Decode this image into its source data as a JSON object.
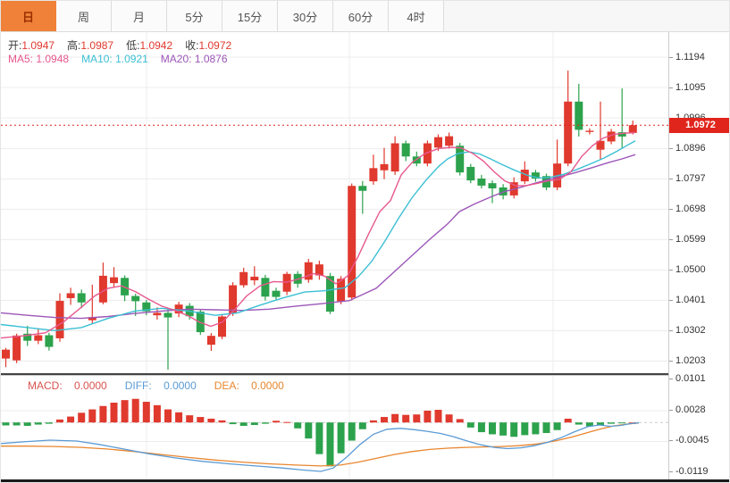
{
  "tabs": [
    {
      "label": "日",
      "active": true
    },
    {
      "label": "周",
      "active": false
    },
    {
      "label": "月",
      "active": false
    },
    {
      "label": "5分",
      "active": false
    },
    {
      "label": "15分",
      "active": false
    },
    {
      "label": "30分",
      "active": false
    },
    {
      "label": "60分",
      "active": false
    },
    {
      "label": "4时",
      "active": false
    }
  ],
  "colors": {
    "up": "#e0392e",
    "down": "#2ca24c",
    "ma5": "#e7588e",
    "ma10": "#3bbfd4",
    "ma20": "#9c56b8",
    "diff": "#5b9bd5",
    "dea": "#e8862e",
    "price_line": "#e0251c",
    "grid": "#ececec",
    "tab_active_bg": "#ef8139"
  },
  "chart_data": {
    "type": "candlestick+macd",
    "main": {
      "readout": {
        "open_label": "开:",
        "open": "1.0947",
        "high_label": "高:",
        "high": "1.0987",
        "low_label": "低:",
        "low": "1.0942",
        "close_label": "收:",
        "close": "1.0972"
      },
      "ma_readout": {
        "ma5_label": "MA5:",
        "ma5": "1.0948",
        "ma10_label": "MA10:",
        "ma10": "1.0921",
        "ma20_label": "MA20:",
        "ma20": "1.0876"
      },
      "y_axis_labels": [
        "1.1194",
        "1.1095",
        "1.0996",
        "1.0896",
        "1.0797",
        "1.0698",
        "1.0599",
        "1.0500",
        "1.0401",
        "1.0302",
        "1.0203"
      ],
      "current_price": "1.0972",
      "candles": [
        [
          1.0211,
          1.0246,
          1.0183,
          1.024
        ],
        [
          1.0205,
          1.0292,
          1.0196,
          1.0286
        ],
        [
          1.0292,
          1.0318,
          1.0252,
          1.0269
        ],
        [
          1.0269,
          1.031,
          1.0258,
          1.0287
        ],
        [
          1.0287,
          1.0295,
          1.0237,
          1.0249
        ],
        [
          1.0277,
          1.0424,
          1.0266,
          1.0399
        ],
        [
          1.0408,
          1.0442,
          1.0386,
          1.0424
        ],
        [
          1.0424,
          1.0436,
          1.0375,
          1.0394
        ],
        [
          1.0336,
          1.0452,
          1.0326,
          1.0346
        ],
        [
          1.0394,
          1.0524,
          1.0388,
          1.0481
        ],
        [
          1.0457,
          1.0509,
          1.0444,
          1.0476
        ],
        [
          1.0474,
          1.0482,
          1.0398,
          1.0417
        ],
        [
          1.0415,
          1.0422,
          1.035,
          1.0398
        ],
        [
          1.0394,
          1.0402,
          1.0352,
          1.0365
        ],
        [
          1.0352,
          1.0378,
          1.0338,
          1.036
        ],
        [
          1.036,
          1.0374,
          1.0175,
          1.0345
        ],
        [
          1.0358,
          1.0396,
          1.0346,
          1.0387
        ],
        [
          1.0383,
          1.0392,
          1.0338,
          1.0349
        ],
        [
          1.0364,
          1.0372,
          1.0288,
          1.0297
        ],
        [
          1.0256,
          1.0294,
          1.0236,
          1.0285
        ],
        [
          1.0282,
          1.0354,
          1.0274,
          1.0348
        ],
        [
          1.0358,
          1.046,
          1.035,
          1.045
        ],
        [
          1.045,
          1.0507,
          1.0442,
          1.0493
        ],
        [
          1.0466,
          1.0512,
          1.045,
          1.0478
        ],
        [
          1.0474,
          1.0484,
          1.04,
          1.0413
        ],
        [
          1.0432,
          1.0442,
          1.0403,
          1.0412
        ],
        [
          1.0429,
          1.0494,
          1.0418,
          1.0487
        ],
        [
          1.0487,
          1.0496,
          1.0442,
          1.0455
        ],
        [
          1.0468,
          1.0536,
          1.0458,
          1.0525
        ],
        [
          1.0482,
          1.053,
          1.0468,
          1.0518
        ],
        [
          1.048,
          1.049,
          1.0356,
          1.0364
        ],
        [
          1.0398,
          1.048,
          1.0388,
          1.0471
        ],
        [
          1.041,
          1.0782,
          1.04,
          1.0774
        ],
        [
          1.0774,
          1.079,
          1.0683,
          1.0758
        ],
        [
          1.0789,
          1.0876,
          1.0778,
          1.0832
        ],
        [
          1.0825,
          1.0898,
          1.0796,
          1.0845
        ],
        [
          1.0821,
          1.0936,
          1.081,
          1.0913
        ],
        [
          1.0913,
          1.0922,
          1.0855,
          1.087
        ],
        [
          1.087,
          1.0886,
          1.0838,
          1.0847
        ],
        [
          1.0847,
          1.0922,
          1.0838,
          1.0913
        ],
        [
          1.0899,
          1.0942,
          1.0888,
          1.0933
        ],
        [
          1.0905,
          1.0948,
          1.0896,
          1.0936
        ],
        [
          1.0905,
          1.0914,
          1.0808,
          1.0818
        ],
        [
          1.0836,
          1.0846,
          1.0783,
          1.0792
        ],
        [
          1.0798,
          1.081,
          1.0766,
          1.0775
        ],
        [
          1.0783,
          1.0792,
          1.0718,
          1.0766
        ],
        [
          1.0769,
          1.078,
          1.073,
          1.0743
        ],
        [
          1.0743,
          1.0802,
          1.0733,
          1.0786
        ],
        [
          1.0789,
          1.0854,
          1.078,
          1.0827
        ],
        [
          1.0818,
          1.0826,
          1.0788,
          1.0798
        ],
        [
          1.0806,
          1.0814,
          1.076,
          1.0769
        ],
        [
          1.0769,
          1.0925,
          1.076,
          1.0847
        ],
        [
          1.0847,
          1.115,
          1.0838,
          1.1049
        ],
        [
          1.1049,
          1.1107,
          1.0935,
          1.0957
        ],
        [
          1.095,
          1.0962,
          1.0942,
          1.0954
        ],
        [
          1.0892,
          1.1049,
          1.0861,
          1.0921
        ],
        [
          1.0919,
          1.096,
          1.091,
          1.0951
        ],
        [
          1.0949,
          1.1092,
          1.0898,
          1.0935
        ],
        [
          1.0947,
          1.0987,
          1.0942,
          1.0972
        ]
      ],
      "ma5_points": [
        [
          0,
          1.0278
        ],
        [
          25,
          1.0285
        ],
        [
          50,
          1.0295
        ],
        [
          70,
          1.033
        ],
        [
          90,
          1.0378
        ],
        [
          105,
          1.0415
        ],
        [
          120,
          1.044
        ],
        [
          135,
          1.0448
        ],
        [
          150,
          1.043
        ],
        [
          165,
          1.0405
        ],
        [
          180,
          1.0382
        ],
        [
          195,
          1.0368
        ],
        [
          210,
          1.035
        ],
        [
          222,
          1.033
        ],
        [
          235,
          1.0316
        ],
        [
          248,
          1.033
        ],
        [
          262,
          1.0372
        ],
        [
          275,
          1.0415
        ],
        [
          290,
          1.0448
        ],
        [
          305,
          1.0462
        ],
        [
          320,
          1.046
        ],
        [
          335,
          1.0472
        ],
        [
          350,
          1.0488
        ],
        [
          362,
          1.048
        ],
        [
          375,
          1.0455
        ],
        [
          388,
          1.048
        ],
        [
          400,
          1.0545
        ],
        [
          412,
          1.062
        ],
        [
          424,
          1.069
        ],
        [
          436,
          1.0726
        ],
        [
          448,
          1.081
        ],
        [
          460,
          1.085
        ],
        [
          475,
          1.088
        ],
        [
          490,
          1.0896
        ],
        [
          505,
          1.09
        ],
        [
          515,
          1.0898
        ],
        [
          528,
          1.088
        ],
        [
          540,
          1.0855
        ],
        [
          552,
          1.082
        ],
        [
          564,
          1.079
        ],
        [
          576,
          1.0775
        ],
        [
          588,
          1.0775
        ],
        [
          600,
          1.0782
        ],
        [
          612,
          1.079
        ],
        [
          625,
          1.0795
        ],
        [
          638,
          1.082
        ],
        [
          650,
          1.087
        ],
        [
          662,
          1.0905
        ],
        [
          674,
          1.093
        ],
        [
          686,
          1.0942
        ],
        [
          698,
          1.0946
        ],
        [
          710,
          1.0948
        ]
      ],
      "ma10_points": [
        [
          0,
          1.0322
        ],
        [
          30,
          1.0312
        ],
        [
          60,
          1.0302
        ],
        [
          90,
          1.0312
        ],
        [
          120,
          1.0342
        ],
        [
          150,
          1.0366
        ],
        [
          180,
          1.0375
        ],
        [
          210,
          1.0366
        ],
        [
          240,
          1.0352
        ],
        [
          265,
          1.036
        ],
        [
          290,
          1.0385
        ],
        [
          315,
          1.0408
        ],
        [
          340,
          1.0428
        ],
        [
          362,
          1.0432
        ],
        [
          385,
          1.0442
        ],
        [
          400,
          1.0478
        ],
        [
          415,
          1.0528
        ],
        [
          430,
          1.0595
        ],
        [
          445,
          1.0668
        ],
        [
          460,
          1.0735
        ],
        [
          475,
          1.079
        ],
        [
          490,
          1.0838
        ],
        [
          500,
          1.0862
        ],
        [
          512,
          1.088
        ],
        [
          524,
          1.0885
        ],
        [
          536,
          1.0878
        ],
        [
          548,
          1.0862
        ],
        [
          560,
          1.0845
        ],
        [
          575,
          1.0825
        ],
        [
          590,
          1.0808
        ],
        [
          602,
          1.08
        ],
        [
          615,
          1.0802
        ],
        [
          630,
          1.0812
        ],
        [
          645,
          1.0828
        ],
        [
          660,
          1.0846
        ],
        [
          675,
          1.0865
        ],
        [
          690,
          1.0888
        ],
        [
          700,
          1.0905
        ],
        [
          710,
          1.0921
        ]
      ],
      "ma20_points": [
        [
          0,
          1.036
        ],
        [
          30,
          1.0352
        ],
        [
          60,
          1.0345
        ],
        [
          90,
          1.0342
        ],
        [
          120,
          1.0348
        ],
        [
          150,
          1.0358
        ],
        [
          180,
          1.0366
        ],
        [
          210,
          1.0372
        ],
        [
          240,
          1.037
        ],
        [
          270,
          1.0368
        ],
        [
          300,
          1.0372
        ],
        [
          330,
          1.0382
        ],
        [
          360,
          1.039
        ],
        [
          390,
          1.04
        ],
        [
          420,
          1.044
        ],
        [
          450,
          1.052
        ],
        [
          480,
          1.06
        ],
        [
          500,
          1.065
        ],
        [
          513,
          1.069
        ],
        [
          530,
          1.0715
        ],
        [
          550,
          1.074
        ],
        [
          563,
          1.0755
        ],
        [
          580,
          1.0768
        ],
        [
          600,
          1.0785
        ],
        [
          620,
          1.08
        ],
        [
          640,
          1.0815
        ],
        [
          660,
          1.0832
        ],
        [
          680,
          1.085
        ],
        [
          695,
          1.0862
        ],
        [
          710,
          1.0876
        ]
      ]
    },
    "macd": {
      "readout": {
        "macd_label": "MACD:",
        "macd": "0.0000",
        "diff_label": "DIFF:",
        "diff": "0.0000",
        "dea_label": "DEA:",
        "dea": "0.0000"
      },
      "y_axis_labels": [
        "0.0101",
        "0.0028",
        "-0.0045",
        "-0.0119"
      ],
      "histogram": [
        -0.0007,
        -0.0007,
        -0.0008,
        -0.0005,
        -0.0003,
        0.0007,
        0.0014,
        0.0023,
        0.0031,
        0.0039,
        0.0047,
        0.0053,
        0.0056,
        0.0049,
        0.0041,
        0.0031,
        0.0024,
        0.0017,
        0.0013,
        0.0009,
        0.0005,
        -0.0004,
        -0.0008,
        -0.0006,
        -0.0003,
        0.0004,
        0.0001,
        -0.0014,
        -0.0038,
        -0.0075,
        -0.0104,
        -0.0073,
        -0.0043,
        -0.0016,
        0.0005,
        0.0013,
        0.002,
        0.0018,
        0.0019,
        0.0028,
        0.003,
        0.0019,
        0.0008,
        -0.0012,
        -0.0023,
        -0.0028,
        -0.0031,
        -0.0034,
        -0.003,
        -0.0028,
        -0.0025,
        -0.0018,
        0.0009,
        -0.0005,
        -0.0009,
        -0.0007,
        -0.0003,
        -0.0001,
        0.0
      ],
      "diff_points": [
        [
          0,
          -0.005
        ],
        [
          25,
          -0.0046
        ],
        [
          55,
          -0.0042
        ],
        [
          85,
          -0.0044
        ],
        [
          110,
          -0.0052
        ],
        [
          135,
          -0.0062
        ],
        [
          165,
          -0.0074
        ],
        [
          195,
          -0.0084
        ],
        [
          225,
          -0.0092
        ],
        [
          255,
          -0.0098
        ],
        [
          285,
          -0.0103
        ],
        [
          315,
          -0.0108
        ],
        [
          340,
          -0.0113
        ],
        [
          358,
          -0.0116
        ],
        [
          372,
          -0.0108
        ],
        [
          387,
          -0.0082
        ],
        [
          402,
          -0.0052
        ],
        [
          417,
          -0.0028
        ],
        [
          432,
          -0.0016
        ],
        [
          447,
          -0.0014
        ],
        [
          462,
          -0.0017
        ],
        [
          477,
          -0.0021
        ],
        [
          492,
          -0.0026
        ],
        [
          507,
          -0.0034
        ],
        [
          522,
          -0.0044
        ],
        [
          537,
          -0.0053
        ],
        [
          552,
          -0.0059
        ],
        [
          567,
          -0.0062
        ],
        [
          582,
          -0.006
        ],
        [
          597,
          -0.0055
        ],
        [
          612,
          -0.0047
        ],
        [
          627,
          -0.0036
        ],
        [
          642,
          -0.0022
        ],
        [
          657,
          -0.001
        ],
        [
          670,
          -0.0006
        ],
        [
          682,
          -0.0009
        ],
        [
          694,
          -0.0007
        ],
        [
          704,
          -0.0003
        ],
        [
          714,
          -0.0001
        ]
      ],
      "dea_points": [
        [
          0,
          -0.0056
        ],
        [
          30,
          -0.0056
        ],
        [
          60,
          -0.0057
        ],
        [
          90,
          -0.0059
        ],
        [
          120,
          -0.0063
        ],
        [
          150,
          -0.0069
        ],
        [
          180,
          -0.0076
        ],
        [
          210,
          -0.0083
        ],
        [
          240,
          -0.0089
        ],
        [
          270,
          -0.0094
        ],
        [
          300,
          -0.0098
        ],
        [
          330,
          -0.0101
        ],
        [
          358,
          -0.0103
        ],
        [
          380,
          -0.0101
        ],
        [
          400,
          -0.0094
        ],
        [
          420,
          -0.0085
        ],
        [
          440,
          -0.0076
        ],
        [
          460,
          -0.0069
        ],
        [
          480,
          -0.0064
        ],
        [
          500,
          -0.0061
        ],
        [
          520,
          -0.0059
        ],
        [
          540,
          -0.0058
        ],
        [
          560,
          -0.0057
        ],
        [
          580,
          -0.0055
        ],
        [
          600,
          -0.0051
        ],
        [
          620,
          -0.0044
        ],
        [
          640,
          -0.0034
        ],
        [
          658,
          -0.0023
        ],
        [
          672,
          -0.0015
        ],
        [
          686,
          -0.0008
        ],
        [
          700,
          -0.0004
        ],
        [
          714,
          -0.0001
        ]
      ]
    }
  }
}
